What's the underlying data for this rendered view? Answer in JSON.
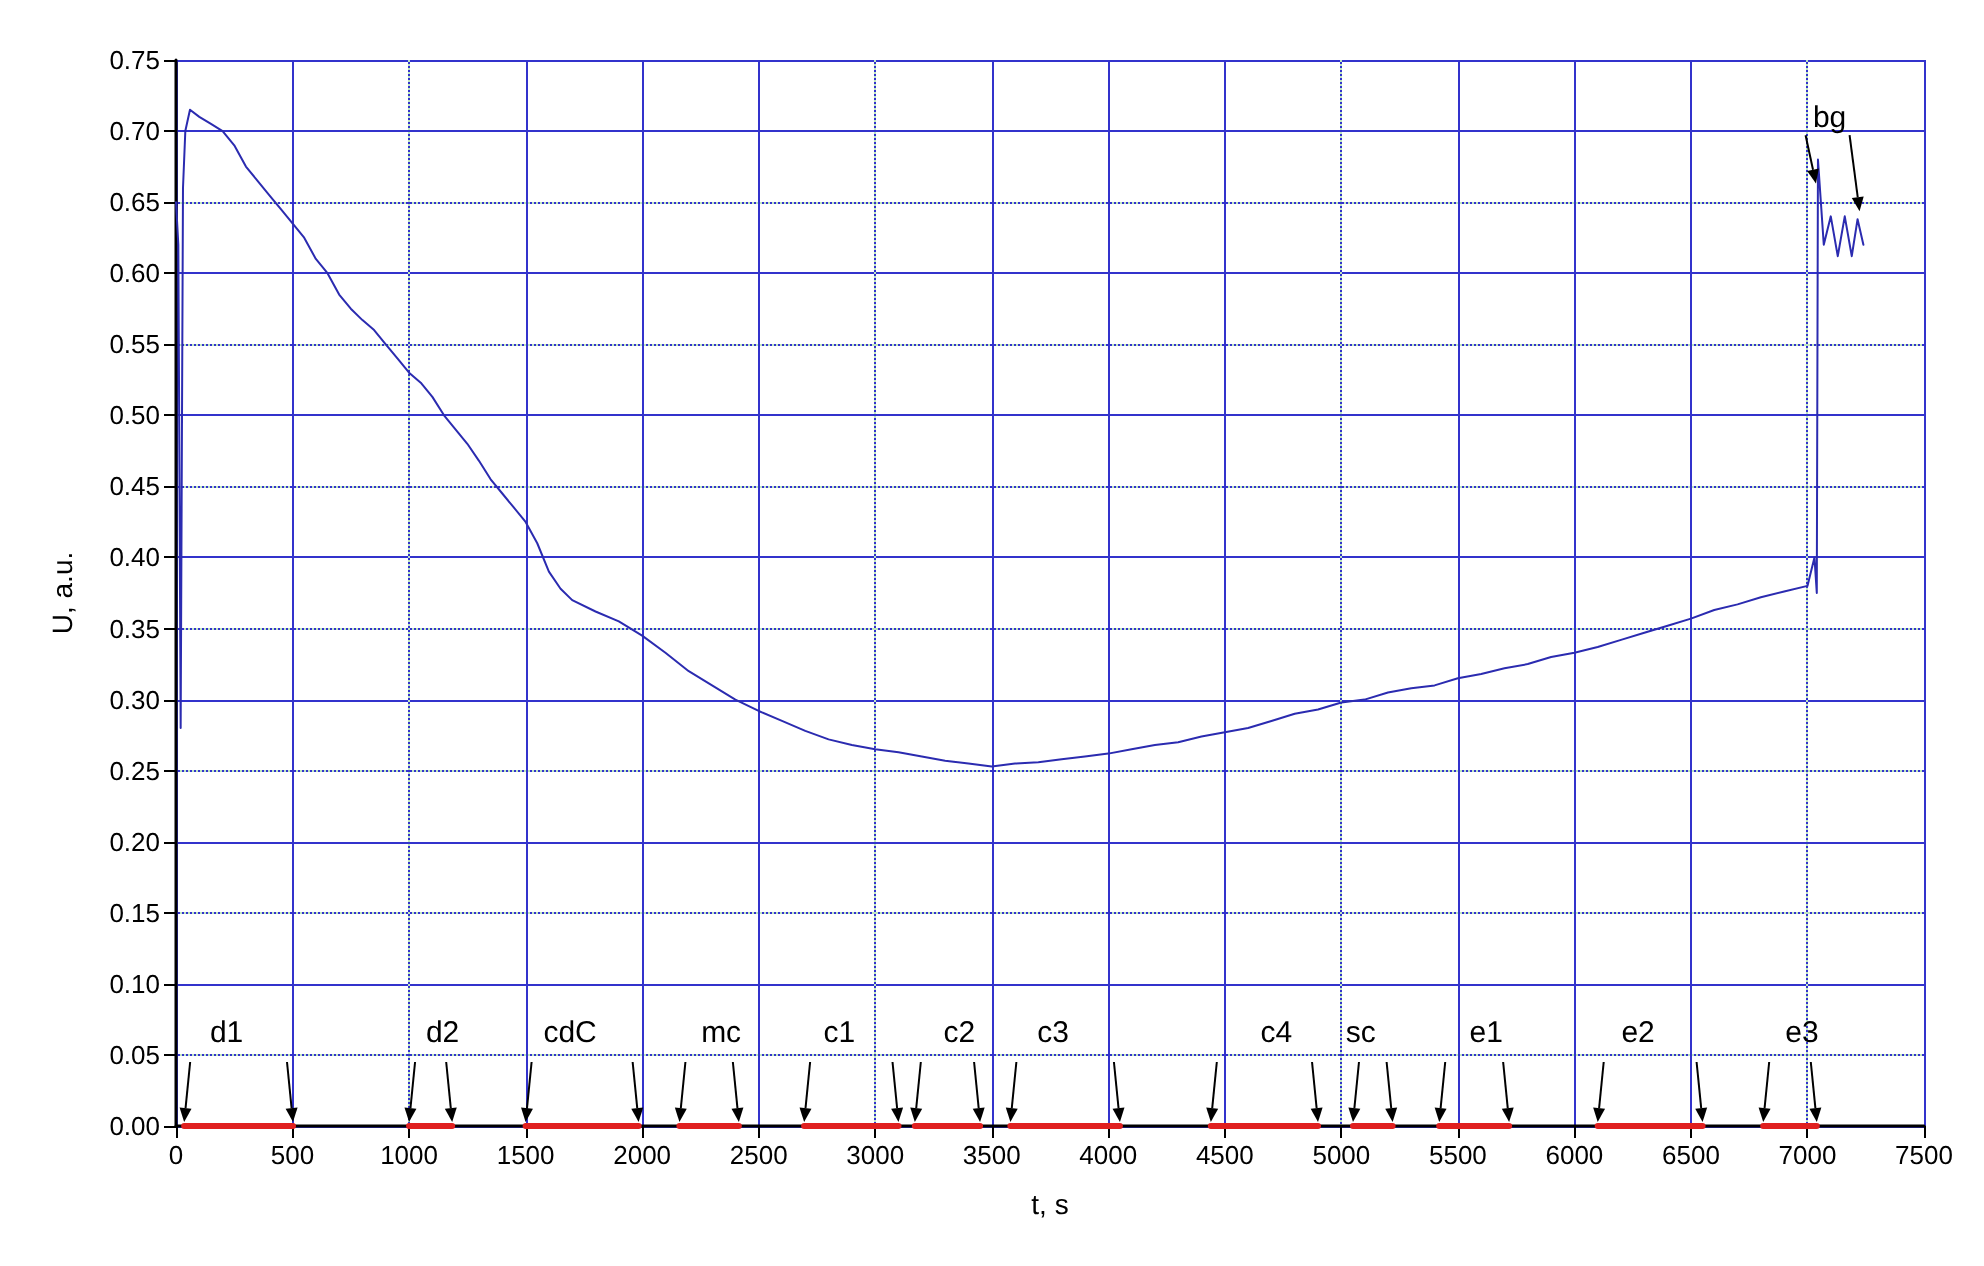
{
  "chart_data": {
    "type": "line",
    "xlabel": "t, s",
    "ylabel": "U, a.u.",
    "xlim": [
      0,
      7500
    ],
    "xticks": [
      0,
      500,
      1000,
      1500,
      2000,
      2500,
      3000,
      3500,
      4000,
      4500,
      5000,
      5500,
      6000,
      6500,
      7000,
      7500
    ],
    "ylim": [
      0,
      0.75
    ],
    "yticks": [
      {
        "value": 0,
        "label": "0.00"
      },
      0.05,
      {
        "value": 0.1,
        "label": "0.10"
      },
      0.15,
      {
        "value": 0.2,
        "label": "0.20"
      },
      0.25,
      {
        "value": 0.3,
        "label": "0.30"
      },
      0.35,
      {
        "value": 0.4,
        "label": "0.40"
      },
      0.45,
      {
        "value": 0.5,
        "label": "0.50"
      },
      0.55,
      {
        "value": 0.6,
        "label": "0.60"
      },
      0.65,
      {
        "value": 0.7,
        "label": "0.70"
      },
      0.75
    ],
    "grid": true,
    "marker": "none",
    "line_style": "solid",
    "series": [
      {
        "color": "#2b2bb0",
        "x": [
          0,
          10,
          20,
          30,
          40,
          60,
          100,
          150,
          200,
          250,
          300,
          350,
          400,
          450,
          500,
          550,
          600,
          650,
          700,
          750,
          800,
          850,
          900,
          950,
          1000,
          1050,
          1100,
          1150,
          1200,
          1250,
          1300,
          1350,
          1400,
          1450,
          1500,
          1550,
          1600,
          1650,
          1700,
          1800,
          1900,
          2000,
          2100,
          2200,
          2300,
          2400,
          2500,
          2600,
          2700,
          2800,
          2900,
          3000,
          3100,
          3200,
          3300,
          3400,
          3500,
          3600,
          3700,
          3800,
          3900,
          4000,
          4100,
          4200,
          4300,
          4400,
          4500,
          4600,
          4700,
          4800,
          4900,
          5000,
          5100,
          5200,
          5300,
          5400,
          5500,
          5600,
          5700,
          5800,
          5900,
          6000,
          6100,
          6200,
          6300,
          6400,
          6500,
          6600,
          6700,
          6800,
          6900,
          7000,
          7030,
          7040,
          7045,
          7070,
          7100,
          7130,
          7160,
          7190,
          7215,
          7240
        ],
        "values": [
          0.65,
          0.62,
          0.28,
          0.66,
          0.7,
          0.715,
          0.71,
          0.705,
          0.7,
          0.69,
          0.675,
          0.665,
          0.655,
          0.645,
          0.635,
          0.625,
          0.61,
          0.6,
          0.585,
          0.575,
          0.567,
          0.56,
          0.55,
          0.54,
          0.53,
          0.523,
          0.513,
          0.5,
          0.49,
          0.48,
          0.468,
          0.455,
          0.445,
          0.435,
          0.425,
          0.41,
          0.39,
          0.378,
          0.37,
          0.362,
          0.355,
          0.345,
          0.333,
          0.32,
          0.31,
          0.3,
          0.292,
          0.285,
          0.278,
          0.272,
          0.268,
          0.265,
          0.263,
          0.26,
          0.257,
          0.255,
          0.253,
          0.255,
          0.256,
          0.258,
          0.26,
          0.262,
          0.265,
          0.268,
          0.27,
          0.274,
          0.277,
          0.28,
          0.285,
          0.29,
          0.293,
          0.298,
          0.3,
          0.305,
          0.308,
          0.31,
          0.315,
          0.318,
          0.322,
          0.325,
          0.33,
          0.333,
          0.337,
          0.342,
          0.347,
          0.352,
          0.357,
          0.363,
          0.367,
          0.372,
          0.376,
          0.38,
          0.4,
          0.375,
          0.68,
          0.62,
          0.64,
          0.612,
          0.64,
          0.612,
          0.638,
          0.62
        ]
      },
      {
        "color": "#e02020",
        "x": [
          35,
          502,
          750,
          1000,
          1185,
          1340,
          1500,
          1985,
          2070,
          2160,
          2415,
          2550,
          2695,
          3100,
          3135,
          3170,
          3450,
          3515,
          3580,
          4050,
          4245,
          4440,
          4900,
          4975,
          5050,
          5220,
          5320,
          5420,
          5720,
          5910,
          6100,
          6550,
          6680,
          6810,
          7040
        ],
        "values": [
          0,
          0,
          null,
          0,
          0,
          null,
          0,
          0,
          null,
          0,
          0,
          null,
          0,
          0,
          null,
          0,
          0,
          null,
          0,
          0,
          null,
          0,
          0,
          null,
          0,
          0,
          null,
          0,
          0,
          null,
          0,
          0,
          null,
          0,
          0
        ]
      }
    ],
    "annotations": [
      "d1",
      "d2",
      "cdC",
      "mc",
      "c1",
      "c2",
      "c3",
      "c4",
      "sc",
      "e1",
      "e2",
      "e3",
      {
        "text": "bg",
        "x": 7215,
        "y": 0.638
      }
    ]
  }
}
